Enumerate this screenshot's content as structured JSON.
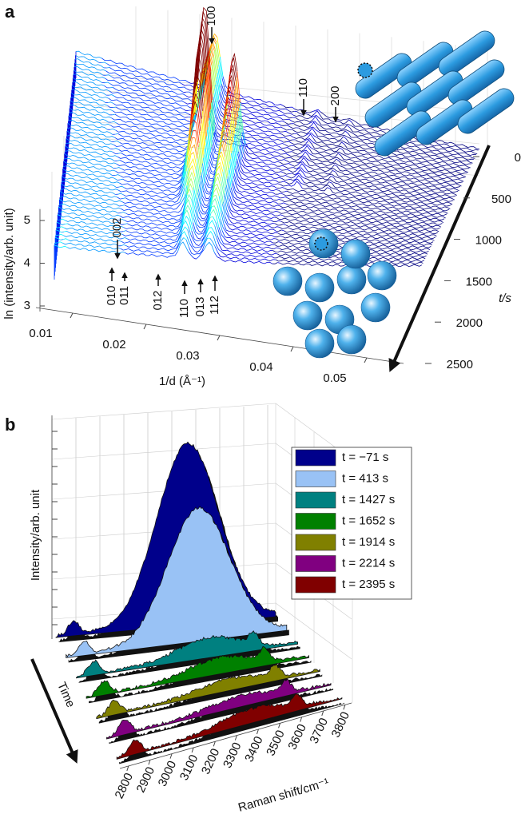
{
  "panel_a": {
    "label": "a",
    "x_axis": {
      "label": "1/d (Å⁻¹)",
      "lim": [
        0.005,
        0.055
      ],
      "ticks": [
        0.01,
        0.02,
        0.03,
        0.04,
        0.05
      ]
    },
    "t_axis": {
      "label": "t/s",
      "lim": [
        0,
        2500
      ],
      "ticks": [
        0,
        500,
        1000,
        1500,
        2000,
        2500
      ]
    },
    "z_axis": {
      "label": "ln (intensity/arb. unit)",
      "lim": [
        3,
        5.3
      ],
      "ticks": [
        3,
        4,
        5
      ]
    },
    "annotations": [
      "100",
      "110",
      "200",
      "002",
      "010",
      "011",
      "012",
      "110",
      "013",
      "112"
    ]
  },
  "panel_b": {
    "label": "b",
    "y_label": "Intensity/arb. unit",
    "time_label": "Time",
    "x_axis": {
      "label": "Raman shift/cm⁻¹",
      "lim": [
        2760,
        3830
      ],
      "ticks": [
        2800,
        2900,
        3000,
        3100,
        3200,
        3300,
        3400,
        3500,
        3600,
        3700,
        3800
      ]
    },
    "legend": [
      {
        "name": "t = −71 s",
        "color": "#00008b"
      },
      {
        "name": "t = 413 s",
        "color": "#99c2f5"
      },
      {
        "name": "t = 1427 s",
        "color": "#008080"
      },
      {
        "name": "t = 1652 s",
        "color": "#008000"
      },
      {
        "name": "t = 1914 s",
        "color": "#808000"
      },
      {
        "name": "t = 2214 s",
        "color": "#800080"
      },
      {
        "name": "t = 2395 s",
        "color": "#800000"
      }
    ]
  }
}
